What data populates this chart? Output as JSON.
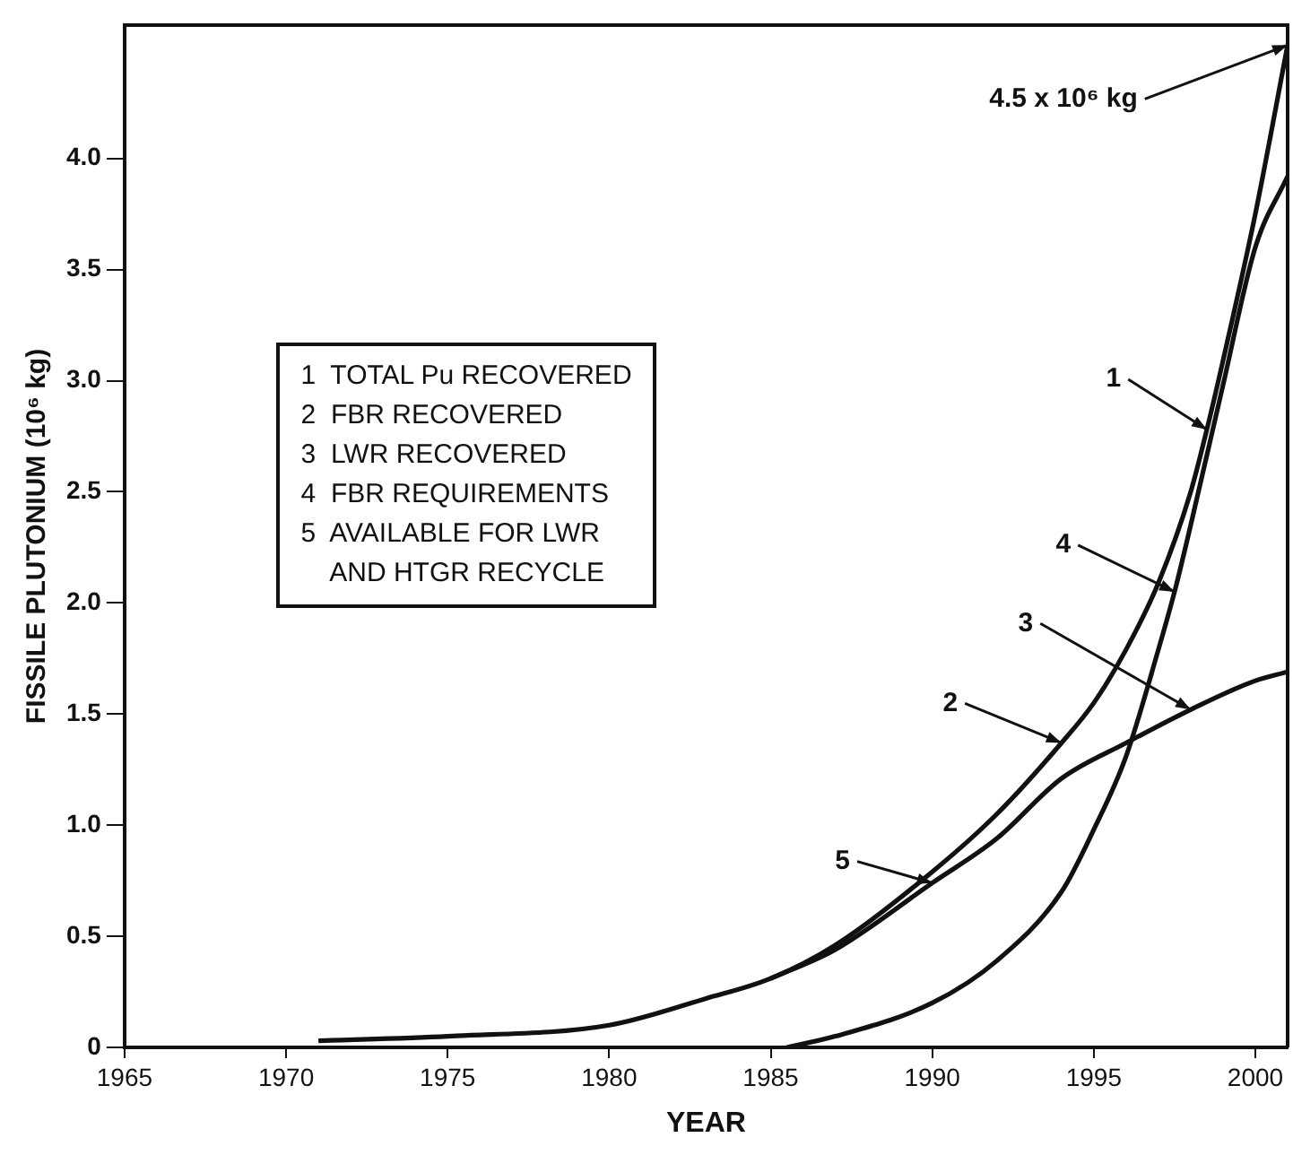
{
  "chart_data": {
    "type": "line",
    "xlabel": "YEAR",
    "ylabel": "FISSILE PLUTONIUM (10⁶ kg)",
    "xlim": [
      1965,
      2001
    ],
    "xticks": [
      1965,
      1970,
      1975,
      1980,
      1985,
      1990,
      1995,
      2000
    ],
    "ylim": [
      0,
      4.6
    ],
    "yticks": [
      0,
      {
        "value": 0.5,
        "label": "0.5"
      },
      {
        "value": 1,
        "label": "1.0"
      },
      {
        "value": 1.5,
        "label": "1.5"
      },
      {
        "value": 2,
        "label": "2.0"
      },
      {
        "value": 2.5,
        "label": "2.5"
      },
      {
        "value": 3,
        "label": "3.0"
      },
      {
        "value": 3.5,
        "label": "3.5"
      },
      {
        "value": 4,
        "label": "4.0"
      }
    ],
    "grid": false,
    "legend": false,
    "marker": "none",
    "line_style": "solid",
    "series": [
      {
        "color": "#111111",
        "x": [
          1971,
          1975,
          1980,
          1983,
          1985,
          1987,
          1990,
          1992,
          1994,
          1995,
          1996,
          1997,
          1998,
          1998.5,
          1999,
          2000,
          2001
        ],
        "values": [
          0.03,
          0.05,
          0.1,
          0.22,
          0.31,
          0.46,
          0.79,
          1.05,
          1.37,
          1.55,
          1.79,
          2.09,
          2.5,
          2.78,
          3.09,
          3.75,
          4.51
        ]
      },
      {
        "color": "#111111",
        "x": [
          1985,
          1987,
          1990,
          1992,
          1994,
          1996,
          1998,
          2000,
          2001
        ],
        "values": [
          0.31,
          0.44,
          0.74,
          0.94,
          1.21,
          1.37,
          1.52,
          1.65,
          1.69
        ]
      },
      {
        "color": "#111111",
        "x": [
          1985.5,
          1987,
          1990,
          1992,
          1994,
          1995,
          1996,
          1997,
          1997.5,
          1998,
          1999,
          2000,
          2001
        ],
        "values": [
          0,
          0.05,
          0.2,
          0.39,
          0.7,
          0.98,
          1.31,
          1.79,
          2.05,
          2.35,
          2.98,
          3.6,
          3.92
        ]
      }
    ],
    "annotations": [
      "1  TOTAL Pu RECOVERED",
      "2  FBR RECOVERED",
      "3  LWR RECOVERED",
      "4  FBR REQUIREMENTS",
      "5  AVAILABLE FOR LWR",
      "    AND HTGR RECYCLE",
      {
        "text": "1",
        "x": 1998.5,
        "y": 2.78
      },
      {
        "text": "4",
        "x": 1997.5,
        "y": 2.05
      },
      {
        "text": "3",
        "x": 1998,
        "y": 1.52
      },
      {
        "text": "2",
        "x": 1994,
        "y": 1.37
      },
      {
        "text": "5",
        "x": 1990,
        "y": 0.74
      },
      {
        "text": "4.5 x 10⁶ kg",
        "x": 2001,
        "y": 4.51
      }
    ]
  }
}
